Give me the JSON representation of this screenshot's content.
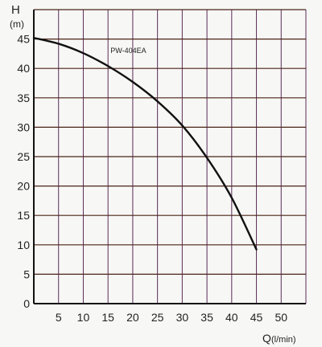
{
  "chart_data": {
    "type": "line",
    "ylabel": "H",
    "ylabel_unit": "(m)",
    "xlabel": "Q",
    "xlabel_unit": "(l/min)",
    "xlim": [
      0,
      55
    ],
    "ylim": [
      0,
      50
    ],
    "x_ticks": [
      "5",
      "10",
      "15",
      "20",
      "25",
      "30",
      "35",
      "40",
      "45",
      "50"
    ],
    "y_ticks": [
      "0",
      "5",
      "10",
      "15",
      "20",
      "25",
      "30",
      "35",
      "40",
      "45"
    ],
    "grid": true,
    "series": [
      {
        "name": "PW-404EA",
        "points": [
          [
            0,
            45.2
          ],
          [
            5,
            44.2
          ],
          [
            10,
            42.6
          ],
          [
            15,
            40.4
          ],
          [
            20,
            37.7
          ],
          [
            25,
            34.4
          ],
          [
            30,
            30.3
          ],
          [
            35,
            24.8
          ],
          [
            40,
            18.0
          ],
          [
            45,
            9.2
          ]
        ]
      }
    ],
    "colors": {
      "grid_vertical": "#5b2c58",
      "grid_horizontal": "#4a2418",
      "curve": "#111111",
      "background": "#f7f7f5"
    }
  }
}
